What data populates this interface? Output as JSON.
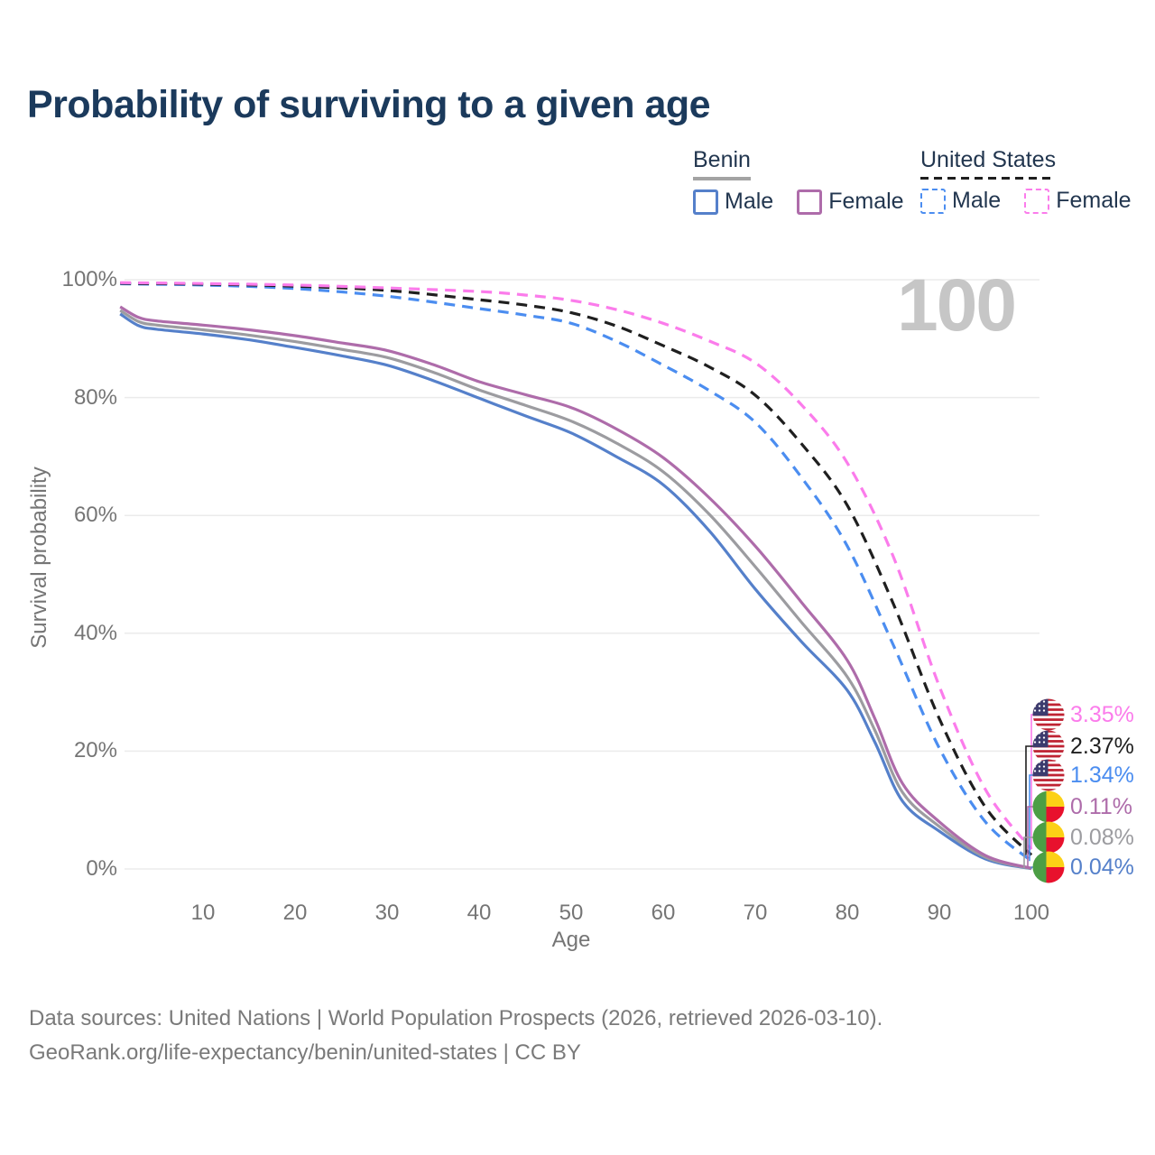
{
  "title": "Probability of surviving to a given age",
  "watermark_age": "100",
  "legend": {
    "groups": [
      {
        "name": "Benin",
        "line_style": "solid",
        "underline_color": "#a3a3a3",
        "items": [
          {
            "label": "Male",
            "color": "#5580ca"
          },
          {
            "label": "Female",
            "color": "#ae6caa"
          }
        ]
      },
      {
        "name": "United States",
        "line_style": "dashed",
        "underline_color": "#1f1f1f",
        "items": [
          {
            "label": "Male",
            "color": "#4b8df0"
          },
          {
            "label": "Female",
            "color": "#fb7ceb"
          }
        ]
      }
    ]
  },
  "axes": {
    "y_title": "Survival probability",
    "x_title": "Age",
    "y_ticks": [
      "0%",
      "20%",
      "40%",
      "60%",
      "80%",
      "100%"
    ],
    "x_ticks": [
      10,
      20,
      30,
      40,
      50,
      60,
      70,
      80,
      90,
      100
    ]
  },
  "chart_data": {
    "type": "line",
    "title": "Probability of surviving to a given age",
    "xlabel": "Age",
    "ylabel": "Survival probability",
    "xlim": [
      1,
      100
    ],
    "ylim": [
      0,
      100
    ],
    "grid": "horizontal-20pct-steps",
    "legend_position": "top-right",
    "age_marker": "100",
    "series": [
      {
        "name": "United States Female",
        "country": "United States",
        "sex": "Female",
        "color": "#fb7ceb",
        "dash": true,
        "flag": "us",
        "end_label": "3.35%",
        "points": [
          [
            1,
            99.5
          ],
          [
            10,
            99.35
          ],
          [
            20,
            99.1
          ],
          [
            30,
            98.6
          ],
          [
            40,
            98.0
          ],
          [
            45,
            97.4
          ],
          [
            50,
            96.5
          ],
          [
            55,
            94.9
          ],
          [
            60,
            92.6
          ],
          [
            65,
            89.6
          ],
          [
            70,
            85.9
          ],
          [
            75,
            78.8
          ],
          [
            80,
            68.9
          ],
          [
            85,
            53
          ],
          [
            90,
            31
          ],
          [
            95,
            13.5
          ],
          [
            100,
            3.35
          ]
        ]
      },
      {
        "name": "United States Both sexes",
        "country": "United States",
        "sex": "Both",
        "color": "#1f1f1f",
        "dash": true,
        "flag": "us",
        "end_label": "2.37%",
        "points": [
          [
            1,
            99.4
          ],
          [
            10,
            99.25
          ],
          [
            20,
            98.9
          ],
          [
            30,
            98.2
          ],
          [
            40,
            96.6
          ],
          [
            45,
            95.7
          ],
          [
            50,
            94.4
          ],
          [
            55,
            92.1
          ],
          [
            60,
            88.8
          ],
          [
            65,
            85.2
          ],
          [
            70,
            80.4
          ],
          [
            75,
            72.2
          ],
          [
            80,
            61.7
          ],
          [
            85,
            45
          ],
          [
            90,
            25.5
          ],
          [
            95,
            10.5
          ],
          [
            100,
            2.37
          ]
        ]
      },
      {
        "name": "United States Male",
        "country": "United States",
        "sex": "Male",
        "color": "#4b8df0",
        "dash": true,
        "flag": "us",
        "end_label": "1.34%",
        "points": [
          [
            1,
            99.3
          ],
          [
            10,
            99.1
          ],
          [
            20,
            98.5
          ],
          [
            30,
            97.2
          ],
          [
            40,
            95.1
          ],
          [
            45,
            94.0
          ],
          [
            50,
            92.6
          ],
          [
            55,
            89.5
          ],
          [
            60,
            85.5
          ],
          [
            65,
            81.2
          ],
          [
            70,
            75.8
          ],
          [
            75,
            66.5
          ],
          [
            80,
            54.8
          ],
          [
            85,
            38
          ],
          [
            90,
            20.5
          ],
          [
            95,
            8
          ],
          [
            100,
            1.34
          ]
        ]
      },
      {
        "name": "Benin Female",
        "country": "Benin",
        "sex": "Female",
        "color": "#ae6caa",
        "dash": false,
        "flag": "benin",
        "end_label": "0.11%",
        "points": [
          [
            1,
            95.4
          ],
          [
            3,
            93.6
          ],
          [
            5,
            93.0
          ],
          [
            10,
            92.3
          ],
          [
            15,
            91.5
          ],
          [
            20,
            90.5
          ],
          [
            25,
            89.3
          ],
          [
            30,
            88.0
          ],
          [
            35,
            85.6
          ],
          [
            40,
            82.7
          ],
          [
            45,
            80.5
          ],
          [
            50,
            78.3
          ],
          [
            55,
            74.6
          ],
          [
            60,
            69.8
          ],
          [
            65,
            63.0
          ],
          [
            70,
            54.8
          ],
          [
            75,
            45.3
          ],
          [
            80,
            35.4
          ],
          [
            83,
            25.5
          ],
          [
            86,
            14.5
          ],
          [
            90,
            8.0
          ],
          [
            95,
            2.3
          ],
          [
            100,
            0.11
          ]
        ]
      },
      {
        "name": "Benin Both sexes",
        "country": "Benin",
        "sex": "Both",
        "color": "#9c9ca0",
        "dash": false,
        "flag": "benin",
        "end_label": "0.08%",
        "points": [
          [
            1,
            94.8
          ],
          [
            3,
            92.9
          ],
          [
            5,
            92.3
          ],
          [
            10,
            91.5
          ],
          [
            15,
            90.6
          ],
          [
            20,
            89.5
          ],
          [
            25,
            88.2
          ],
          [
            30,
            86.8
          ],
          [
            35,
            84.3
          ],
          [
            40,
            81.3
          ],
          [
            45,
            78.7
          ],
          [
            50,
            76.0
          ],
          [
            55,
            72.2
          ],
          [
            60,
            67.4
          ],
          [
            65,
            60.2
          ],
          [
            70,
            51.3
          ],
          [
            75,
            41.9
          ],
          [
            80,
            32.6
          ],
          [
            83,
            23.5
          ],
          [
            86,
            13.0
          ],
          [
            90,
            7.2
          ],
          [
            95,
            2.0
          ],
          [
            100,
            0.08
          ]
        ]
      },
      {
        "name": "Benin Male",
        "country": "Benin",
        "sex": "Male",
        "color": "#5580ca",
        "dash": false,
        "flag": "benin",
        "end_label": "0.04%",
        "points": [
          [
            1,
            94.2
          ],
          [
            3,
            92.2
          ],
          [
            5,
            91.6
          ],
          [
            10,
            90.8
          ],
          [
            15,
            89.8
          ],
          [
            20,
            88.5
          ],
          [
            25,
            87.1
          ],
          [
            30,
            85.5
          ],
          [
            35,
            82.9
          ],
          [
            40,
            79.9
          ],
          [
            45,
            76.9
          ],
          [
            50,
            74.0
          ],
          [
            55,
            69.9
          ],
          [
            60,
            65.2
          ],
          [
            65,
            57.4
          ],
          [
            70,
            47.5
          ],
          [
            75,
            38.6
          ],
          [
            80,
            30.3
          ],
          [
            83,
            21.5
          ],
          [
            86,
            11.5
          ],
          [
            90,
            6.4
          ],
          [
            95,
            1.7
          ],
          [
            100,
            0.04
          ]
        ]
      }
    ]
  },
  "footer": {
    "line1": "Data sources: United Nations | World Population Prospects (2026, retrieved 2026-03-10).",
    "line2": "GeoRank.org/life-expectancy/benin/united-states | CC BY"
  }
}
